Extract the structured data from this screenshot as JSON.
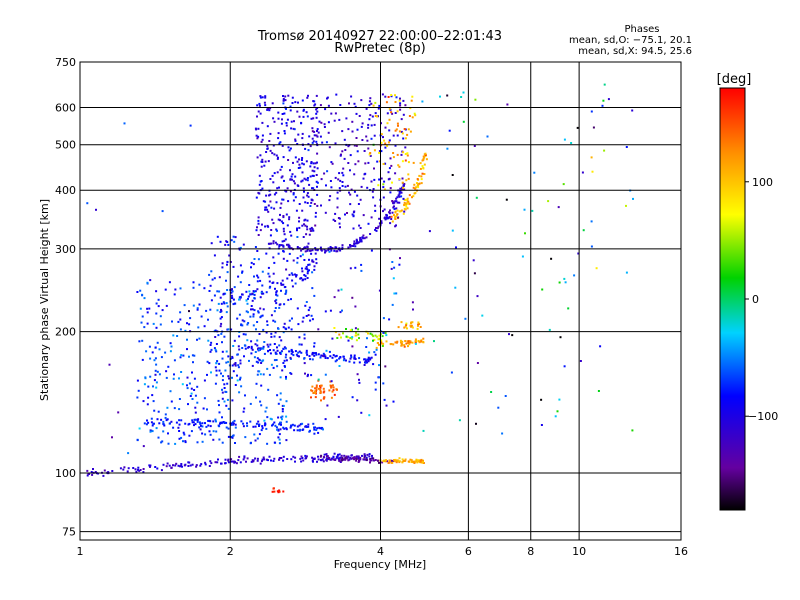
{
  "chart_data": {
    "type": "scatter",
    "title": "Tromsø 20140927 22:00:00–22:01:43",
    "subtitle": "RwPretec (8p)",
    "xlabel": "Frequency [MHz]",
    "ylabel": "Stationary phase Virtual Height [km]",
    "x_scale": "log",
    "y_scale": "log",
    "xlim": [
      1,
      16
    ],
    "ylim": [
      72,
      750
    ],
    "x_ticks": [
      1,
      2,
      4,
      6,
      8,
      10,
      16
    ],
    "x_tick_labels": [
      "1",
      "2",
      "4",
      "6",
      "8",
      "10",
      "16"
    ],
    "y_ticks": [
      75,
      100,
      200,
      300,
      400,
      500,
      600,
      750
    ],
    "y_tick_labels": [
      "75",
      "100",
      "200",
      "300",
      "400",
      "500",
      "600",
      "750"
    ],
    "grid": true,
    "stats": {
      "title": "Phases",
      "line_o": "mean, sd,O: −75.1, 20.1",
      "line_x": "mean, sd,X:  94.5, 25.6"
    },
    "colorbar": {
      "label": "[deg]",
      "range": [
        -180,
        180
      ],
      "ticks": [
        100,
        0,
        -100
      ],
      "tick_labels": [
        "100",
        "0",
        "−100"
      ]
    },
    "traces": [
      {
        "kind": "band",
        "f": [
          1.02,
          1.3,
          1.6,
          2.0,
          2.5,
          3.0,
          3.4,
          3.8
        ],
        "h": [
          100,
          102,
          104,
          106,
          107,
          107,
          108,
          108
        ],
        "n": 210,
        "sf": 0.012,
        "sh": 0.015,
        "phase": -110,
        "ps": 18
      },
      {
        "kind": "band",
        "f": [
          1.35,
          1.7,
          2.1,
          2.5,
          2.8,
          3.1
        ],
        "h": [
          128,
          128,
          127,
          126,
          125,
          124
        ],
        "n": 130,
        "sf": 0.01,
        "sh": 0.018,
        "phase": -80,
        "ps": 18
      },
      {
        "kind": "band",
        "f": [
          2.1,
          2.4,
          2.7,
          3.0,
          3.3,
          3.6,
          3.9
        ],
        "h": [
          185,
          183,
          180,
          178,
          176,
          175,
          174
        ],
        "n": 110,
        "sf": 0.01,
        "sh": 0.018,
        "phase": -85,
        "ps": 18
      },
      {
        "kind": "band",
        "f": [
          1.9,
          2.2,
          2.5,
          2.8,
          3.0
        ],
        "h": [
          235,
          240,
          250,
          265,
          290
        ],
        "n": 50,
        "sf": 0.01,
        "sh": 0.03,
        "phase": -95,
        "ps": 15
      },
      {
        "kind": "band",
        "f": [
          2.4,
          2.7,
          3.0,
          3.3,
          3.6,
          3.9,
          4.2,
          4.45
        ],
        "h": [
          310,
          300,
          298,
          300,
          310,
          330,
          360,
          410
        ],
        "n": 150,
        "sf": 0.008,
        "sh": 0.012,
        "phase": -110,
        "ps": 15
      },
      {
        "kind": "band",
        "f": [
          4.2,
          4.4,
          4.6,
          4.8,
          4.95
        ],
        "h": [
          350,
          360,
          385,
          420,
          480
        ],
        "n": 80,
        "sf": 0.01,
        "sh": 0.02,
        "phase": 105,
        "ps": 35
      },
      {
        "kind": "band",
        "f": [
          3.0,
          3.3,
          3.6,
          4.0,
          4.3
        ],
        "h": [
          108,
          107,
          107,
          106,
          106
        ],
        "n": 60,
        "sf": 0.01,
        "sh": 0.01,
        "phase": -145,
        "ps": 15
      },
      {
        "kind": "band",
        "f": [
          4.0,
          4.3,
          4.6,
          4.9
        ],
        "h": [
          106,
          106,
          106,
          106
        ],
        "n": 60,
        "sf": 0.01,
        "sh": 0.01,
        "phase": 110,
        "ps": 20
      },
      {
        "kind": "band",
        "f": [
          3.9,
          4.3,
          4.6,
          4.9
        ],
        "h": [
          188,
          189,
          190,
          192
        ],
        "n": 50,
        "sf": 0.01,
        "sh": 0.015,
        "phase": 120,
        "ps": 30
      },
      {
        "kind": "band",
        "f": [
          2.9,
          3.1,
          3.3
        ],
        "h": [
          150,
          150,
          150
        ],
        "n": 45,
        "sf": 0.012,
        "sh": 0.04,
        "phase": 145,
        "ps": 20
      },
      {
        "kind": "band",
        "f": [
          3.2,
          3.5,
          3.8,
          4.1
        ],
        "h": [
          200,
          198,
          196,
          194
        ],
        "n": 40,
        "sf": 0.012,
        "sh": 0.03,
        "phase": 50,
        "ps": 60
      },
      {
        "kind": "band",
        "f": [
          4.4,
          4.6,
          4.8
        ],
        "h": [
          205,
          205,
          205
        ],
        "n": 20,
        "sf": 0.012,
        "sh": 0.03,
        "phase": 110,
        "ps": 40
      },
      {
        "kind": "band",
        "f": [
          2.45,
          2.55
        ],
        "h": [
          92,
          92
        ],
        "n": 10,
        "sf": 0.01,
        "sh": 0.01,
        "phase": 170,
        "ps": 15
      },
      {
        "kind": "region",
        "f0": 1.3,
        "f1": 2.6,
        "h0": 115,
        "h1": 260,
        "n": 420,
        "phase": -70,
        "ps": 30
      },
      {
        "kind": "region",
        "f0": 1.8,
        "f1": 2.95,
        "h0": 160,
        "h1": 320,
        "n": 260,
        "phase": -85,
        "ps": 30
      },
      {
        "kind": "region",
        "f0": 2.25,
        "f1": 3.0,
        "h0": 320,
        "h1": 640,
        "n": 300,
        "phase": -100,
        "ps": 25
      },
      {
        "kind": "region",
        "f0": 2.9,
        "f1": 4.5,
        "h0": 330,
        "h1": 640,
        "n": 260,
        "phase": -110,
        "ps": 30
      },
      {
        "kind": "region",
        "f0": 3.8,
        "f1": 4.7,
        "h0": 400,
        "h1": 640,
        "n": 70,
        "phase": 100,
        "ps": 50
      },
      {
        "kind": "region",
        "f0": 3.0,
        "f1": 4.4,
        "h0": 130,
        "h1": 300,
        "n": 70,
        "phase": -90,
        "ps": 60
      },
      {
        "kind": "region",
        "f0": 4.6,
        "f1": 13.0,
        "h0": 120,
        "h1": 680,
        "n": 90,
        "phase": -60,
        "ps": 120
      },
      {
        "kind": "region",
        "f0": 1.0,
        "f1": 1.7,
        "h0": 110,
        "h1": 700,
        "n": 12,
        "phase": -90,
        "ps": 60
      }
    ]
  }
}
